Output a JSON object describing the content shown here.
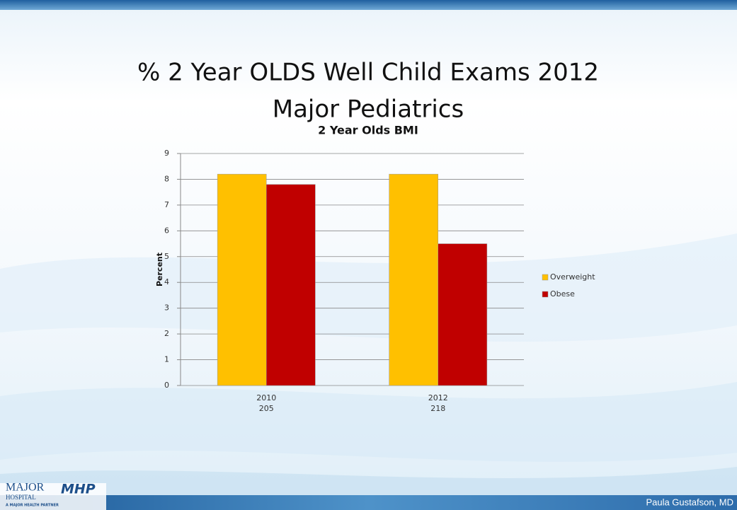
{
  "slide": {
    "title": [
      "% 2 Year OLDS Well Child Exams 2012",
      "Major Pediatrics"
    ],
    "logo": [
      "MAJOR",
      "HOSPITAL",
      "MHP",
      "A MAJOR HEALTH PARTNER"
    ],
    "footer": "Paula Gustafson, MD"
  },
  "chart_data": {
    "type": "bar",
    "title": "2 Year Olds BMI",
    "ylabel": "Percent",
    "categories": [
      "2010\n205",
      "2012\n218"
    ],
    "series": [
      {
        "name": "Overweight",
        "color": "#ffc000",
        "values": [
          8.2,
          8.2
        ]
      },
      {
        "name": "Obese",
        "color": "#c00000",
        "values": [
          7.8,
          5.5
        ]
      }
    ],
    "ylim": [
      0,
      9
    ],
    "yticks": [
      0,
      1,
      2,
      3,
      4,
      5,
      6,
      7,
      8,
      9
    ],
    "grid": true,
    "legend": "right"
  }
}
